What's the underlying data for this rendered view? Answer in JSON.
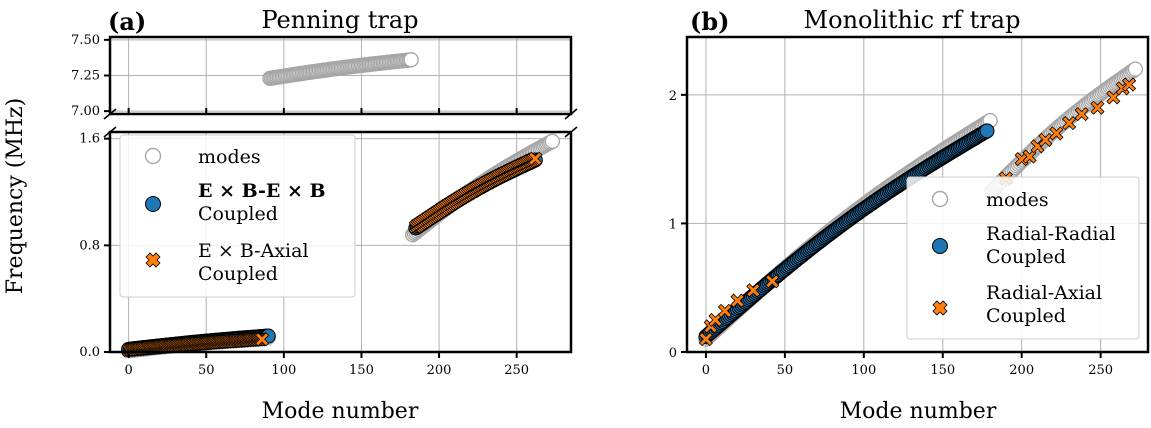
{
  "chart_data": [
    {
      "type": "scatter",
      "panel_label": "(a)",
      "title": "Penning trap",
      "xlabel": "Mode number",
      "ylabel": "Frequency (MHz)",
      "broken_y_axis": true,
      "xlim": [
        -12,
        285
      ],
      "xticks": [
        0,
        50,
        100,
        150,
        200,
        250
      ],
      "upper_ylim": [
        6.98,
        7.52
      ],
      "upper_yticks": [
        "7.00",
        "7.25",
        "7.50"
      ],
      "lower_ylim": [
        0.0,
        1.65
      ],
      "lower_yticks": [
        "0.0",
        "0.8",
        "1.6"
      ],
      "grid": true,
      "legend_position": "center-left",
      "legend": [
        {
          "label_line1": "modes",
          "label_line2": "",
          "marker": "open-circle"
        },
        {
          "label_line1": "E × B-E × B",
          "label_line2": "Coupled",
          "marker": "blue-circle"
        },
        {
          "label_line1": "E × B-Axial",
          "label_line2": "Coupled",
          "marker": "orange-x"
        }
      ],
      "series": [
        {
          "name": "modes",
          "style": "open-circle",
          "segments": [
            {
              "x": [
                0,
                90
              ],
              "y": [
                0.01,
                0.11
              ]
            },
            {
              "x": [
                91,
                182
              ],
              "y": [
                7.23,
                7.36
              ]
            },
            {
              "x": [
                183,
                273
              ],
              "y": [
                0.88,
                1.58
              ]
            }
          ]
        },
        {
          "name": "E × B-E × B Coupled",
          "style": "blue-circle",
          "segments": [
            {
              "x": [
                0,
                90
              ],
              "y": [
                0.02,
                0.12
              ]
            },
            {
              "x": [
                185,
                262
              ],
              "y": [
                0.93,
                1.44
              ]
            }
          ]
        },
        {
          "name": "E × B-Axial Coupled",
          "style": "orange-x",
          "segments": [
            {
              "x": [
                0,
                86
              ],
              "y": [
                0.015,
                0.095
              ]
            },
            {
              "x": [
                185,
                262
              ],
              "y": [
                0.94,
                1.45
              ]
            }
          ]
        }
      ]
    },
    {
      "type": "scatter",
      "panel_label": "(b)",
      "title": "Monolithic rf trap",
      "xlabel": "Mode number",
      "ylabel": "",
      "xlim": [
        -12,
        280
      ],
      "xticks": [
        0,
        50,
        100,
        150,
        200,
        250
      ],
      "ylim": [
        0,
        2.45
      ],
      "yticks": [
        0,
        1,
        2
      ],
      "grid": true,
      "legend_position": "lower-right",
      "legend": [
        {
          "label_line1": "modes",
          "label_line2": "",
          "marker": "open-circle"
        },
        {
          "label_line1": "Radial-Radial",
          "label_line2": "Coupled",
          "marker": "blue-circle"
        },
        {
          "label_line1": "Radial-Axial",
          "label_line2": "Coupled",
          "marker": "orange-x"
        }
      ],
      "series": [
        {
          "name": "modes",
          "style": "open-circle",
          "segments": [
            {
              "x": [
                0,
                180
              ],
              "y": [
                0.1,
                1.8
              ]
            },
            {
              "x": [
                181,
                272
              ],
              "y": [
                1.25,
                2.2
              ]
            }
          ]
        },
        {
          "name": "Radial-Radial Coupled",
          "style": "blue-circle",
          "segments": [
            {
              "x": [
                0,
                178
              ],
              "y": [
                0.12,
                1.72
              ]
            }
          ]
        },
        {
          "name": "Radial-Axial Coupled",
          "style": "orange-x",
          "points": [
            [
              0,
              0.1
            ],
            [
              3,
              0.2
            ],
            [
              6,
              0.25
            ],
            [
              12,
              0.32
            ],
            [
              20,
              0.4
            ],
            [
              30,
              0.48
            ],
            [
              42,
              0.55
            ],
            [
              190,
              1.35
            ],
            [
              200,
              1.5
            ],
            [
              205,
              1.52
            ],
            [
              210,
              1.6
            ],
            [
              215,
              1.65
            ],
            [
              222,
              1.7
            ],
            [
              230,
              1.78
            ],
            [
              238,
              1.85
            ],
            [
              248,
              1.9
            ],
            [
              258,
              1.98
            ],
            [
              264,
              2.05
            ],
            [
              268,
              2.08
            ]
          ]
        }
      ]
    }
  ]
}
